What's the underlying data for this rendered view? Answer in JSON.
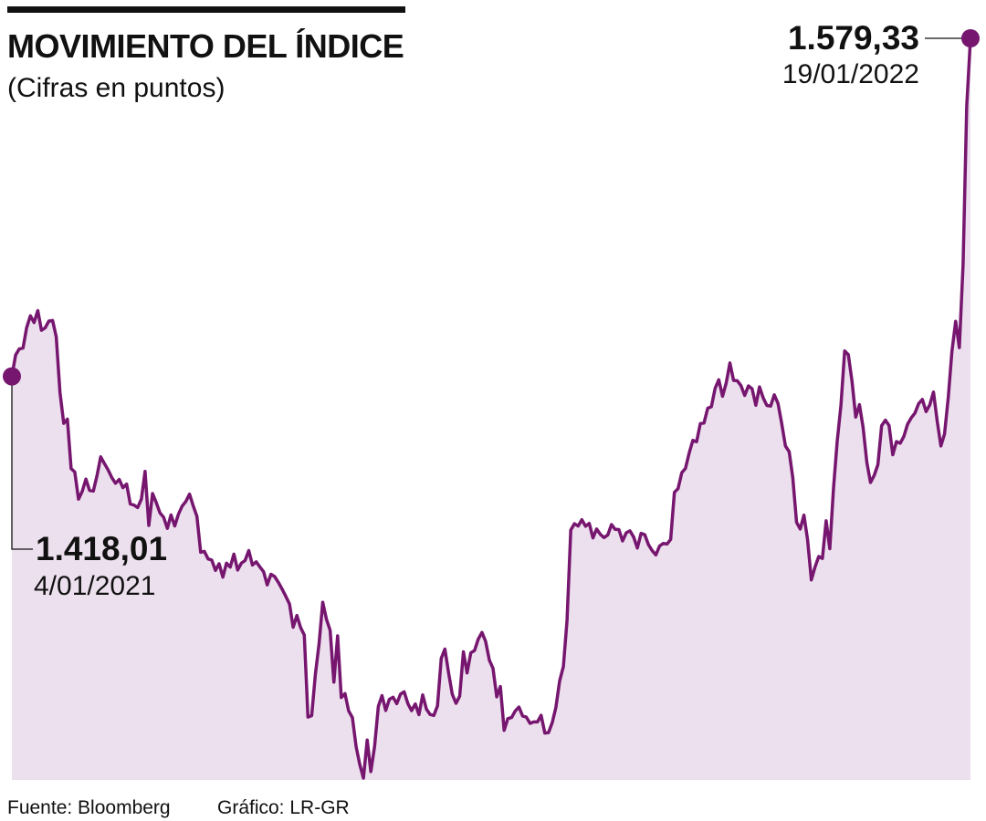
{
  "header": {
    "title": "MOVIMIENTO DEL ÍNDICE",
    "subtitle": "(Cifras en puntos)"
  },
  "footer": {
    "source": "Fuente: Bloomberg",
    "credit": "Gráfico: LR-GR"
  },
  "colors": {
    "line": "#76166f",
    "fill": "#ede0ee",
    "marker": "#76166f",
    "text": "#111111"
  },
  "chart_data": {
    "type": "area",
    "title": "MOVIMIENTO DEL ÍNDICE",
    "subtitle": "(Cifras en puntos)",
    "x_range": [
      "4/01/2021",
      "19/01/2022"
    ],
    "grid": false,
    "annotations": [
      {
        "label": "start",
        "value_text": "1.418,01",
        "date_text": "4/01/2021",
        "value": 1418.01
      },
      {
        "label": "end",
        "value_text": "1.579,33",
        "date_text": "19/01/2022",
        "value": 1579.33
      }
    ],
    "values": [
      1418.01,
      1428.2,
      1431.1,
      1431.5,
      1441.3,
      1446.9,
      1443.7,
      1449.4,
      1440.0,
      1441.2,
      1444.4,
      1444.7,
      1436.9,
      1410.3,
      1395.6,
      1397.6,
      1374.0,
      1372.4,
      1359.4,
      1363.1,
      1369.0,
      1363.6,
      1363.3,
      1370.5,
      1379.6,
      1376.4,
      1373.4,
      1369.7,
      1367.0,
      1368.8,
      1364.9,
      1366.6,
      1357.1,
      1356.6,
      1355.4,
      1359.5,
      1372.7,
      1346.9,
      1362.1,
      1357.8,
      1352.9,
      1350.8,
      1345.5,
      1351.9,
      1346.6,
      1352.2,
      1356.1,
      1358.3,
      1361.8,
      1356.3,
      1351.2,
      1334.1,
      1334.5,
      1330.9,
      1330.4,
      1325.4,
      1328.6,
      1322.2,
      1328.9,
      1327.0,
      1333.2,
      1325.6,
      1328.9,
      1330.1,
      1334.9,
      1328.0,
      1329.5,
      1327.1,
      1324.8,
      1318.5,
      1323.6,
      1322.5,
      1319.7,
      1316.6,
      1313.1,
      1309.4,
      1298.3,
      1303.9,
      1298.2,
      1294.6,
      1255.4,
      1256.1,
      1275.6,
      1290.5,
      1310.2,
      1302.1,
      1296.8,
      1272.1,
      1294.2,
      1264.8,
      1266.6,
      1258.4,
      1255.2,
      1241.5,
      1232.8,
      1226.3,
      1244.5,
      1229.4,
      1241.4,
      1260.5,
      1265.7,
      1258.6,
      1263.9,
      1264.9,
      1261.8,
      1266.4,
      1267.5,
      1261.8,
      1258.5,
      1261.7,
      1256.6,
      1266.0,
      1259.2,
      1256.7,
      1256.2,
      1260.8,
      1283.4,
      1287.9,
      1276.4,
      1266.3,
      1262.0,
      1265.4,
      1286.6,
      1276.5,
      1286.1,
      1287.2,
      1292.6,
      1295.8,
      1291.6,
      1282.6,
      1278.7,
      1265.1,
      1270.0,
      1249.1,
      1254.7,
      1255.2,
      1258.4,
      1260.2,
      1255.9,
      1255.4,
      1252.4,
      1253.1,
      1253.1,
      1256.3,
      1247.8,
      1248.0,
      1252.8,
      1260.1,
      1272.7,
      1279.6,
      1301.6,
      1344.7,
      1347.7,
      1346.6,
      1349.6,
      1346.5,
      1347.9,
      1340.9,
      1345.2,
      1342.6,
      1341.1,
      1342.3,
      1347.3,
      1345.0,
      1344.9,
      1339.5,
      1343.4,
      1344.3,
      1341.3,
      1336.1,
      1343.1,
      1342.5,
      1337.7,
      1334.8,
      1332.8,
      1337.1,
      1338.3,
      1338.0,
      1340.2,
      1362.7,
      1364.4,
      1372.1,
      1374.1,
      1381.5,
      1387.5,
      1386.8,
      1395.5,
      1395.7,
      1402.8,
      1403.5,
      1412.3,
      1416.4,
      1408.5,
      1414.8,
      1424.4,
      1416.1,
      1415.9,
      1413.6,
      1408.9,
      1413.5,
      1412.1,
      1404.2,
      1413.0,
      1407.7,
      1404.1,
      1403.8,
      1409.2,
      1405.1,
      1395.6,
      1384.8,
      1382.1,
      1369.5,
      1348.4,
      1345.2,
      1351.8,
      1339.9,
      1320.9,
      1327.0,
      1332.1,
      1331.1,
      1349.1,
      1335.8,
      1364.8,
      1387.4,
      1404.1,
      1430.1,
      1428.4,
      1415.5,
      1398.6,
      1404.5,
      1393.6,
      1376.9,
      1367.4,
      1370.8,
      1375.9,
      1394.5,
      1397.1,
      1394.6,
      1380.6,
      1386.9,
      1386.1,
      1389.3,
      1395.2,
      1398.2,
      1400.5,
      1405.0,
      1407.0,
      1401.2,
      1404.4,
      1410.5,
      1396.8,
      1384.8,
      1390.6,
      1408.1,
      1430.0,
      1444.3,
      1431.7,
      1471.3,
      1547.2,
      1579.33
    ]
  }
}
